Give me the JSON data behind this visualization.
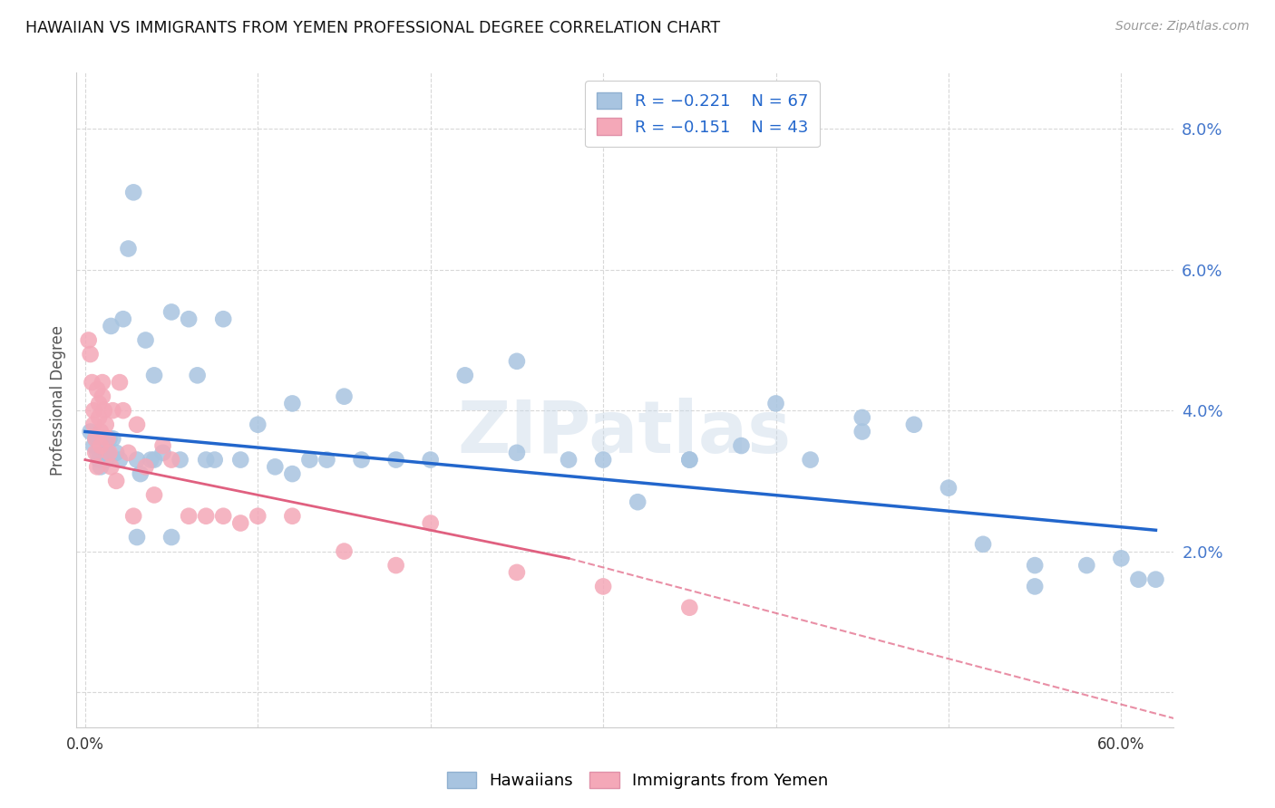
{
  "title": "HAWAIIAN VS IMMIGRANTS FROM YEMEN PROFESSIONAL DEGREE CORRELATION CHART",
  "source": "Source: ZipAtlas.com",
  "ylabel": "Professional Degree",
  "ytick_values": [
    0.0,
    0.02,
    0.04,
    0.06,
    0.08
  ],
  "xtick_values": [
    0.0,
    0.1,
    0.2,
    0.3,
    0.4,
    0.5,
    0.6
  ],
  "xlim": [
    -0.005,
    0.63
  ],
  "ylim": [
    -0.005,
    0.088
  ],
  "hawaiians_color": "#a8c4e0",
  "yemen_color": "#f4a8b8",
  "trend_hawaiians_color": "#2266cc",
  "trend_yemen_color": "#e06080",
  "background_color": "#ffffff",
  "grid_color": "#d8d8d8",
  "hawaiians_x": [
    0.003,
    0.005,
    0.006,
    0.007,
    0.008,
    0.009,
    0.01,
    0.012,
    0.013,
    0.014,
    0.015,
    0.016,
    0.018,
    0.02,
    0.022,
    0.025,
    0.028,
    0.03,
    0.032,
    0.035,
    0.038,
    0.04,
    0.045,
    0.05,
    0.055,
    0.06,
    0.065,
    0.07,
    0.075,
    0.08,
    0.09,
    0.1,
    0.11,
    0.12,
    0.13,
    0.14,
    0.15,
    0.16,
    0.18,
    0.2,
    0.22,
    0.25,
    0.28,
    0.3,
    0.32,
    0.35,
    0.38,
    0.4,
    0.42,
    0.45,
    0.48,
    0.5,
    0.52,
    0.55,
    0.58,
    0.6,
    0.61,
    0.62,
    0.03,
    0.04,
    0.05,
    0.12,
    0.25,
    0.35,
    0.45,
    0.55
  ],
  "hawaiians_y": [
    0.037,
    0.035,
    0.036,
    0.034,
    0.033,
    0.032,
    0.035,
    0.033,
    0.034,
    0.036,
    0.052,
    0.036,
    0.034,
    0.033,
    0.053,
    0.063,
    0.071,
    0.033,
    0.031,
    0.05,
    0.033,
    0.045,
    0.034,
    0.054,
    0.033,
    0.053,
    0.045,
    0.033,
    0.033,
    0.053,
    0.033,
    0.038,
    0.032,
    0.041,
    0.033,
    0.033,
    0.042,
    0.033,
    0.033,
    0.033,
    0.045,
    0.034,
    0.033,
    0.033,
    0.027,
    0.033,
    0.035,
    0.041,
    0.033,
    0.039,
    0.038,
    0.029,
    0.021,
    0.018,
    0.018,
    0.019,
    0.016,
    0.016,
    0.022,
    0.033,
    0.022,
    0.031,
    0.047,
    0.033,
    0.037,
    0.015
  ],
  "yemen_x": [
    0.002,
    0.003,
    0.004,
    0.005,
    0.005,
    0.006,
    0.006,
    0.007,
    0.007,
    0.008,
    0.008,
    0.009,
    0.009,
    0.01,
    0.01,
    0.011,
    0.012,
    0.013,
    0.014,
    0.015,
    0.016,
    0.018,
    0.02,
    0.022,
    0.025,
    0.028,
    0.03,
    0.035,
    0.04,
    0.045,
    0.05,
    0.06,
    0.07,
    0.08,
    0.09,
    0.1,
    0.12,
    0.15,
    0.18,
    0.2,
    0.25,
    0.3,
    0.35
  ],
  "yemen_y": [
    0.05,
    0.048,
    0.044,
    0.04,
    0.038,
    0.036,
    0.034,
    0.032,
    0.043,
    0.041,
    0.039,
    0.037,
    0.035,
    0.044,
    0.042,
    0.04,
    0.038,
    0.036,
    0.034,
    0.032,
    0.04,
    0.03,
    0.044,
    0.04,
    0.034,
    0.025,
    0.038,
    0.032,
    0.028,
    0.035,
    0.033,
    0.025,
    0.025,
    0.025,
    0.024,
    0.025,
    0.025,
    0.02,
    0.018,
    0.024,
    0.017,
    0.015,
    0.012
  ]
}
